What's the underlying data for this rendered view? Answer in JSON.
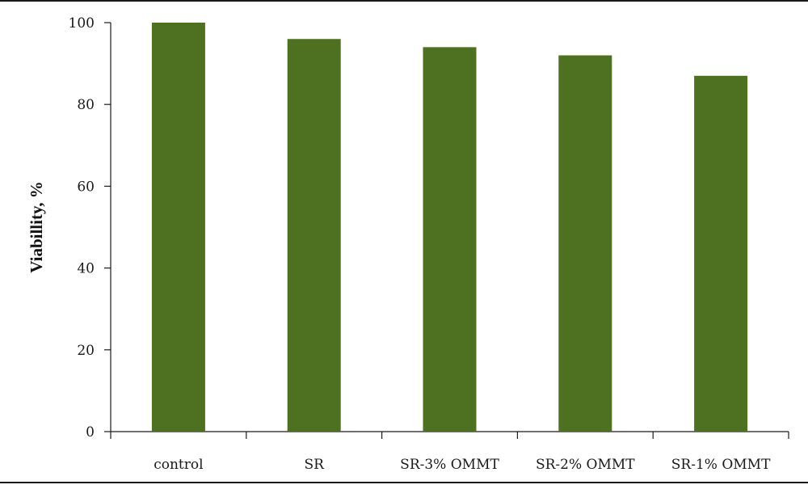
{
  "chart_data": {
    "type": "bar",
    "title": "",
    "xlabel": "",
    "ylabel": "Viabillity, %",
    "categories": [
      "control",
      "SR",
      "SR-3% OMMT",
      "SR-2% OMMT",
      "SR-1% OMMT"
    ],
    "values": [
      100,
      96,
      94,
      92,
      87
    ],
    "ylim": [
      0,
      100
    ],
    "yticks": [
      0,
      20,
      40,
      60,
      80,
      100
    ],
    "grid": false,
    "legend": "none",
    "bar_color": "#4e7021"
  }
}
